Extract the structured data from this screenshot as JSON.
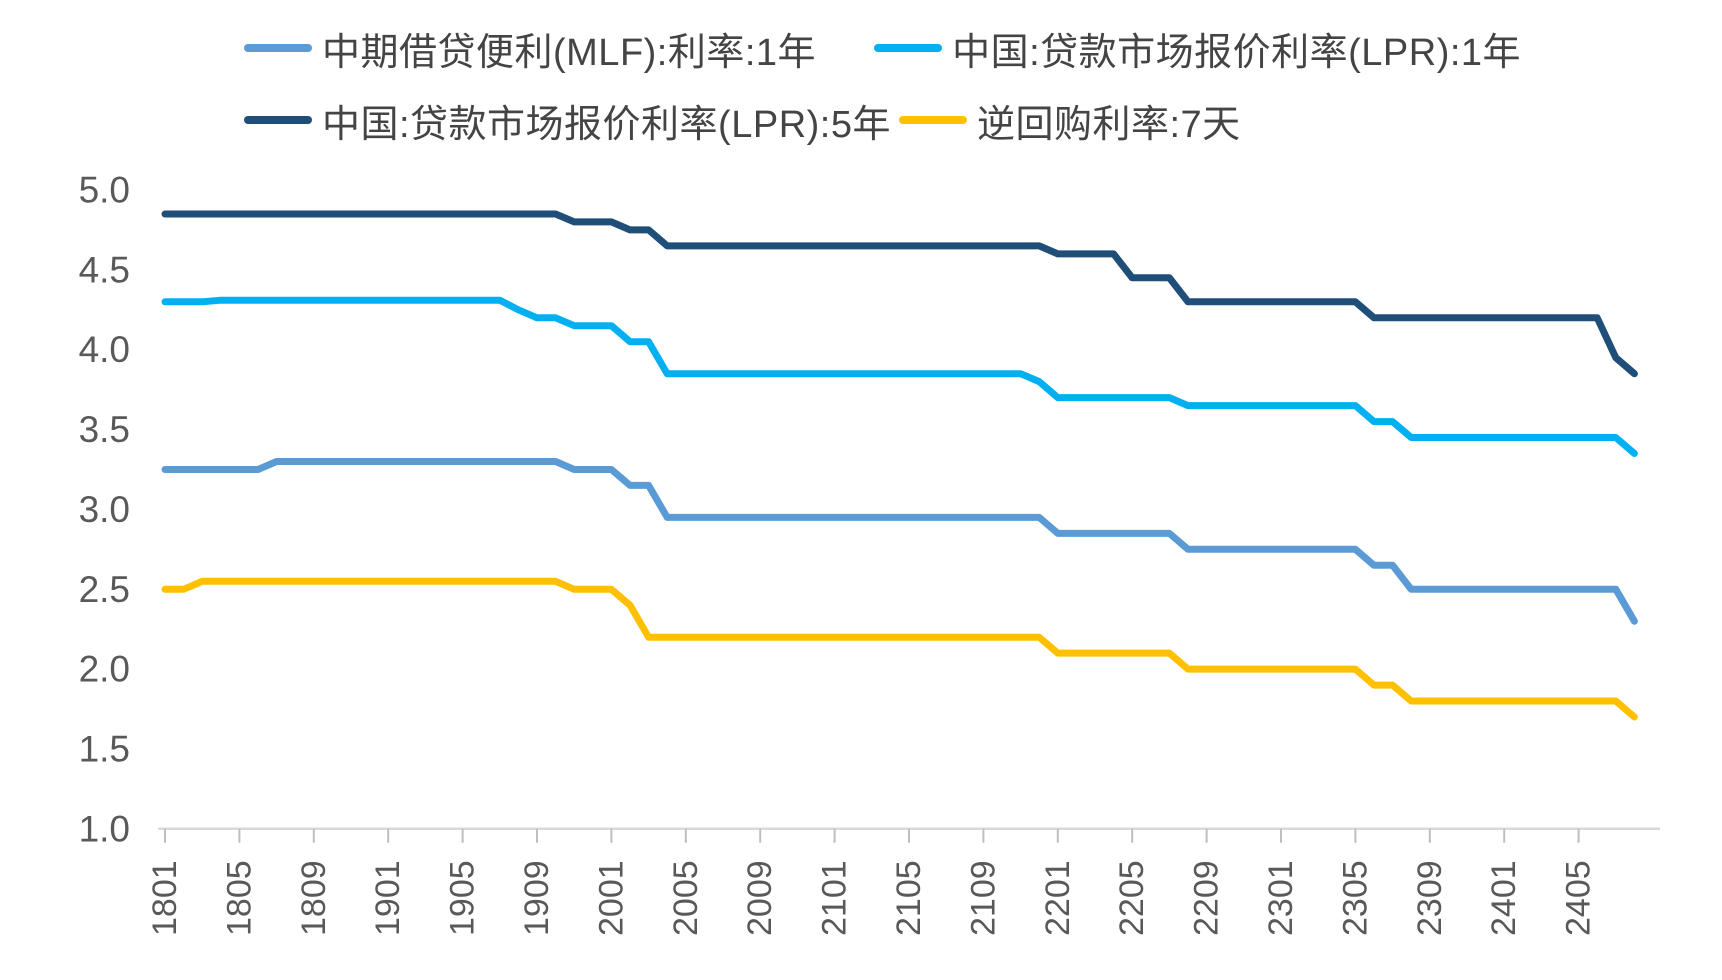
{
  "chart_data": {
    "type": "line",
    "title": "",
    "subtitle": "",
    "grid": false,
    "legend_position": "top",
    "line_style": "step-monthly",
    "x_axis": {
      "label": "",
      "unit": "year-month (YYMM)",
      "first_month": "1801",
      "last_month": "2408",
      "tick_interval_months": 4,
      "tick_labels": [
        "1801",
        "1805",
        "1809",
        "1901",
        "1905",
        "1909",
        "2001",
        "2005",
        "2009",
        "2101",
        "2105",
        "2109",
        "2201",
        "2205",
        "2209",
        "2301",
        "2305",
        "2309",
        "2401",
        "2405"
      ]
    },
    "y_axis": {
      "label": "",
      "min": 1.0,
      "max": 5.0,
      "step": 0.5,
      "tick_labels": [
        "5.0",
        "4.5",
        "4.0",
        "3.5",
        "3.0",
        "2.5",
        "2.0",
        "1.5",
        "1.0"
      ]
    },
    "series": [
      {
        "key": "mlf_1y",
        "name": "中期借贷便利(MLF):利率:1年",
        "color": "#5B9BD5",
        "legend_row": 0,
        "steps": {
          "1801": 3.25,
          "1807": 3.3,
          "1911": 3.25,
          "2002": 3.15,
          "2004": 2.95,
          "2201": 2.85,
          "2208": 2.75,
          "2306": 2.65,
          "2308": 2.5,
          "2408": 2.3
        }
      },
      {
        "key": "lpr_1y",
        "name": "中国:贷款市场报价利率(LPR):1年",
        "color": "#00B0F0",
        "legend_row": 0,
        "steps": {
          "1801": 4.3,
          "1804": 4.31,
          "1908": 4.25,
          "1909": 4.2,
          "1911": 4.15,
          "2002": 4.05,
          "2004": 3.85,
          "2112": 3.8,
          "2201": 3.7,
          "2208": 3.65,
          "2306": 3.55,
          "2308": 3.45,
          "2408": 3.35
        }
      },
      {
        "key": "lpr_5y",
        "name": "中国:贷款市场报价利率(LPR):5年",
        "color": "#1F4E79",
        "legend_row": 1,
        "steps": {
          "1801": 4.85,
          "1911": 4.8,
          "2002": 4.75,
          "2004": 4.65,
          "2201": 4.6,
          "2205": 4.45,
          "2208": 4.3,
          "2306": 4.2,
          "2407": 3.95,
          "2408": 3.85
        }
      },
      {
        "key": "repo_7d",
        "name": "逆回购利率:7天",
        "color": "#FFC000",
        "legend_row": 1,
        "steps": {
          "1801": 2.5,
          "1803": 2.55,
          "1911": 2.5,
          "2002": 2.4,
          "2003": 2.2,
          "2201": 2.1,
          "2208": 2.0,
          "2306": 1.9,
          "2308": 1.8,
          "2408": 1.7
        }
      }
    ],
    "axis_style": {
      "axis_line_color": "#D9D9D9",
      "tick_mark_color": "#BFBFBF",
      "label_color": "#595959"
    }
  }
}
